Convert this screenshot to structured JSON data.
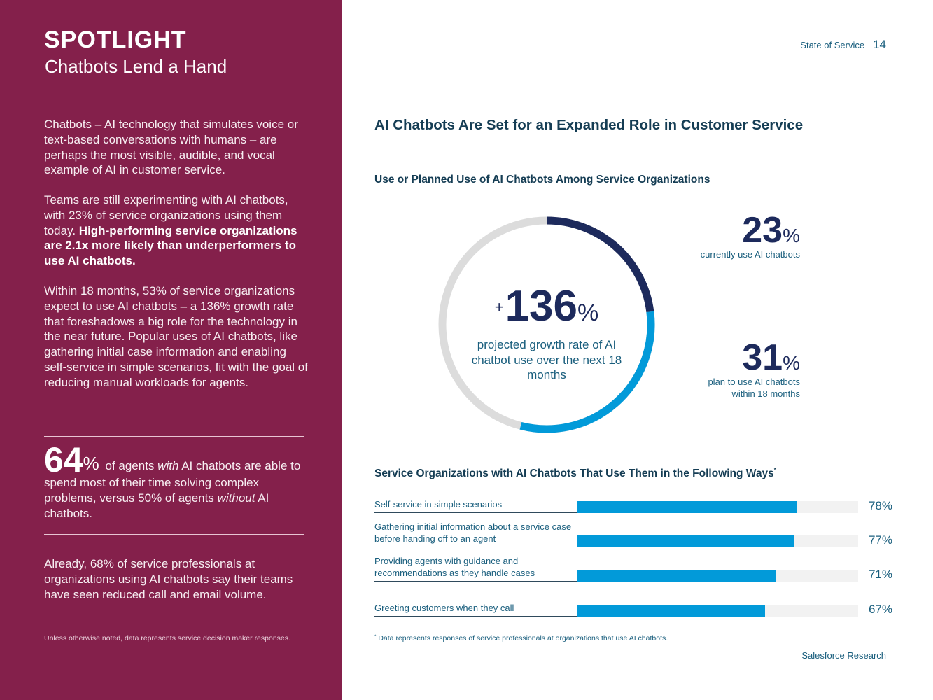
{
  "left_panel": {
    "title": "SPOTLIGHT",
    "subtitle": "Chatbots Lend a Hand",
    "para1": "Chatbots – AI technology that simulates voice or text-based conversations with humans – are perhaps the most visible, audible, and vocal example of AI in customer service.",
    "para2_plain": "Teams are still experimenting with AI chatbots, with 23% of service organizations using them today.",
    "para2_bold": "High-performing service organizations are 2.1x more likely than underperformers to use AI chatbots.",
    "para3": "Within 18 months, 53% of service organizations expect to use AI chatbots – a 136% growth rate that foreshadows a big role for the technology in the near future. Popular uses of AI chatbots, like gathering initial case information and enabling self-service in simple scenarios, fit with the goal of reducing manual workloads for agents.",
    "callout": {
      "number": "64",
      "percent": "%",
      "text1": "of agents",
      "text_with": "with",
      "text2": "AI chatbots are able to spend most of their time solving complex problems, versus 50% of agents",
      "text_without": "without",
      "text3": "AI chatbots."
    },
    "para4": "Already, 68% of service professionals at organizations using AI chatbots say their teams have seen reduced call and email volume.",
    "footnote": "Unless otherwise noted, data represents service decision maker responses."
  },
  "header": {
    "source": "State of Service",
    "page_number": "14"
  },
  "main_title": "AI Chatbots Are Set for an Expanded Role in Customer Service",
  "donut_section": {
    "title": "Use or Planned Use of AI Chatbots Among Service Organizations",
    "center_plus": "+",
    "center_number": "136",
    "center_percent": "%",
    "center_caption": "projected growth rate of AI chatbot use over the next 18 months",
    "stat_current_number": "23",
    "stat_current_percent": "%",
    "stat_current_caption": "currently use AI chatbots",
    "stat_planned_number": "31",
    "stat_planned_percent": "%",
    "stat_planned_caption": "plan to use AI chatbots within 18 months"
  },
  "chart_data": {
    "type": "bar",
    "title": "Service Organizations with AI Chatbots That Use Them in the Following Ways",
    "title_marker": "*",
    "categories": [
      "Self-service in simple scenarios",
      "Gathering initial information about a service case before handing off to an agent",
      "Providing agents with guidance and recommendations as they handle cases",
      "Greeting customers when they call"
    ],
    "values": [
      78,
      77,
      71,
      67
    ],
    "value_labels": [
      "78%",
      "77%",
      "71%",
      "67%"
    ],
    "xlim": [
      0,
      100
    ],
    "donut": {
      "current_use": 23,
      "planned_use": 31,
      "growth_rate": 136
    },
    "colors": {
      "bar": "#029ad9",
      "track": "#f2f2f2",
      "donut_current": "#1d2a5c",
      "donut_planned": "#029ad9",
      "donut_remaining": "#dcdcdc"
    }
  },
  "bar_footnote_marker": "*",
  "bar_footnote": "Data represents responses of service professionals at organizations that use AI chatbots.",
  "brand": "Salesforce Research",
  "colors": {
    "left_panel_bg": "#84204b",
    "heading": "#153d54",
    "text_teal": "#195e7d",
    "navy": "#1d2a5c"
  }
}
